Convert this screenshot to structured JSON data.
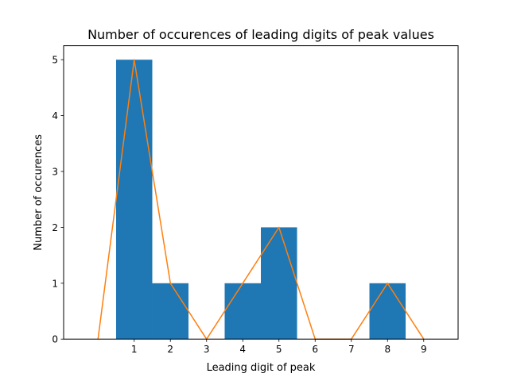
{
  "chart_data": {
    "type": "bar",
    "title": "Number of occurences of leading digits of peak values",
    "xlabel": "Leading digit of peak",
    "ylabel": "Number of occurences",
    "xlim": [
      -0.95,
      9.95
    ],
    "ylim": [
      0,
      5.25
    ],
    "x_ticks": [
      1,
      2,
      3,
      4,
      5,
      6,
      7,
      8,
      9
    ],
    "y_ticks": [
      0,
      1,
      2,
      3,
      4,
      5
    ],
    "grid": false,
    "legend": "none",
    "bars": {
      "color": "#1f77b4",
      "bins": [
        {
          "start": 0.5,
          "end": 1.5,
          "value": 5
        },
        {
          "start": 1.5,
          "end": 2.5,
          "value": 1
        },
        {
          "start": 2.5,
          "end": 3.5,
          "value": 0
        },
        {
          "start": 3.5,
          "end": 4.5,
          "value": 1
        },
        {
          "start": 4.5,
          "end": 5.5,
          "value": 2
        },
        {
          "start": 5.5,
          "end": 6.5,
          "value": 0
        },
        {
          "start": 6.5,
          "end": 7.5,
          "value": 0
        },
        {
          "start": 7.5,
          "end": 8.5,
          "value": 1
        }
      ]
    },
    "series": [
      {
        "type": "line",
        "color": "#ff7f0e",
        "x": [
          0,
          1,
          2,
          3,
          4,
          5,
          6,
          7,
          8,
          9
        ],
        "values": [
          0,
          5,
          1,
          0,
          1,
          2,
          0,
          0,
          1,
          0
        ]
      }
    ]
  }
}
